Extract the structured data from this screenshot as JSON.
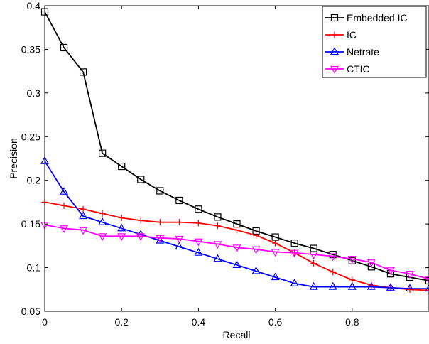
{
  "chart_data": {
    "type": "line",
    "title": "",
    "xlabel": "Recall",
    "ylabel": "Precision",
    "xlim": [
      0,
      1
    ],
    "ylim": [
      0.05,
      0.4
    ],
    "xticks": [
      0,
      0.2,
      0.4,
      0.6,
      0.8
    ],
    "xtick_labels": [
      "0",
      "0.2",
      "0.4",
      "0.6",
      "0.8"
    ],
    "yticks": [
      0.05,
      0.1,
      0.15,
      0.2,
      0.25,
      0.3,
      0.35,
      0.4
    ],
    "ytick_labels": [
      "0.05",
      "0.1",
      "0.15",
      "0.2",
      "0.25",
      "0.3",
      "0.35",
      "0.4"
    ],
    "grid": false,
    "legend_position": "top-right",
    "x": [
      0,
      0.05,
      0.1,
      0.15,
      0.2,
      0.25,
      0.3,
      0.35,
      0.4,
      0.45,
      0.5,
      0.55,
      0.6,
      0.65,
      0.7,
      0.75,
      0.8,
      0.85,
      0.9,
      0.95,
      1.0
    ],
    "series": [
      {
        "name": "Embedded IC",
        "color": "#000000",
        "marker": "square",
        "values": [
          0.393,
          0.352,
          0.324,
          0.231,
          0.216,
          0.201,
          0.188,
          0.177,
          0.167,
          0.158,
          0.15,
          0.142,
          0.135,
          0.128,
          0.122,
          0.115,
          0.108,
          0.101,
          0.093,
          0.089,
          0.085
        ]
      },
      {
        "name": "IC",
        "color": "#ff0000",
        "marker": "plus",
        "values": [
          0.175,
          0.171,
          0.167,
          0.162,
          0.157,
          0.154,
          0.152,
          0.152,
          0.151,
          0.148,
          0.143,
          0.137,
          0.128,
          0.117,
          0.105,
          0.095,
          0.086,
          0.08,
          0.077,
          0.075,
          0.074
        ]
      },
      {
        "name": "Netrate",
        "color": "#0000ff",
        "marker": "triangle-up",
        "values": [
          0.222,
          0.187,
          0.159,
          0.152,
          0.145,
          0.138,
          0.131,
          0.124,
          0.117,
          0.11,
          0.103,
          0.096,
          0.089,
          0.082,
          0.078,
          0.078,
          0.078,
          0.078,
          0.077,
          0.076,
          0.076
        ]
      },
      {
        "name": "CTIC",
        "color": "#ff00ff",
        "marker": "triangle-down",
        "values": [
          0.149,
          0.145,
          0.143,
          0.136,
          0.136,
          0.136,
          0.134,
          0.133,
          0.13,
          0.127,
          0.123,
          0.121,
          0.118,
          0.117,
          0.115,
          0.113,
          0.11,
          0.106,
          0.097,
          0.093,
          0.087
        ]
      }
    ]
  }
}
